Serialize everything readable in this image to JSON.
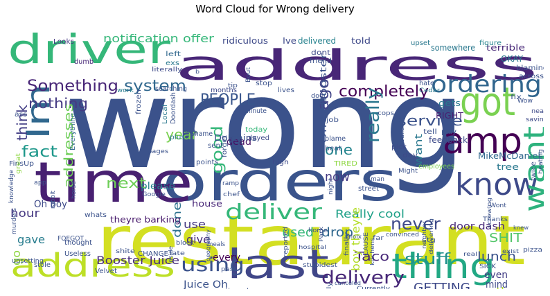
{
  "chart_data": {
    "type": "wordcloud",
    "title": "Word Cloud for Wrong delivery",
    "words": [
      {
        "text": "wrong",
        "color": "#3b528b"
      },
      {
        "text": "restaurant",
        "color": "#d3df22"
      },
      {
        "text": "address",
        "color": "#482677"
      },
      {
        "text": "orders",
        "color": "#3a548c"
      },
      {
        "text": "time",
        "color": "#482071"
      },
      {
        "text": "driver",
        "color": "#35b779"
      },
      {
        "text": "address",
        "color": "#bddf26"
      },
      {
        "text": "last",
        "color": "#404688"
      },
      {
        "text": "got",
        "color": "#7ad151"
      },
      {
        "text": "amp",
        "color": "#440154"
      },
      {
        "text": "know",
        "color": "#3e4a89"
      },
      {
        "text": "thing",
        "color": "#22a884"
      },
      {
        "text": "want",
        "color": "#2db27d"
      },
      {
        "text": "Im",
        "color": "#31688e"
      },
      {
        "text": "ordering",
        "color": "#31668e"
      },
      {
        "text": "deliver",
        "color": "#35b779"
      },
      {
        "text": "using",
        "color": "#3b528b"
      },
      {
        "text": "delivery",
        "color": "#482878"
      },
      {
        "text": "completely",
        "color": "#440154"
      },
      {
        "text": "Something",
        "color": "#482677"
      },
      {
        "text": "system",
        "color": "#31688e"
      },
      {
        "text": "PEOPLE",
        "color": "#39568c"
      },
      {
        "text": "never",
        "color": "#3e4a89"
      },
      {
        "text": "stuff",
        "color": "#21918c"
      },
      {
        "text": "fact",
        "color": "#1f988b"
      },
      {
        "text": "next",
        "color": "#6ece58"
      },
      {
        "text": "year",
        "color": "#7ad151"
      },
      {
        "text": "nothing",
        "color": "#443a83"
      },
      {
        "text": "service",
        "color": "#3b528b"
      },
      {
        "text": "really",
        "color": "#2a788e"
      },
      {
        "text": "think",
        "color": "#433e85"
      },
      {
        "text": "addresses",
        "color": "#6ece58"
      },
      {
        "text": "one",
        "color": "#25848e"
      },
      {
        "text": "good",
        "color": "#35b779"
      },
      {
        "text": "ago",
        "color": "#414487"
      },
      {
        "text": "now",
        "color": "#443a83"
      },
      {
        "text": "lunch",
        "color": "#3b528b"
      },
      {
        "text": "GETTING",
        "color": "#3e4989"
      },
      {
        "text": "Taco",
        "color": "#482878"
      },
      {
        "text": "SHIT",
        "color": "#52c569"
      },
      {
        "text": "another",
        "color": "#b5de2b"
      },
      {
        "text": "notification offer",
        "color": "#35b779"
      },
      {
        "text": "Booster Juice",
        "color": "#472d7b"
      },
      {
        "text": "Really cool",
        "color": "#1fa188"
      },
      {
        "text": "door dash",
        "color": "#482878"
      },
      {
        "text": "used",
        "color": "#35b779"
      },
      {
        "text": "drop",
        "color": "#31688e"
      },
      {
        "text": "gave",
        "color": "#287d8e"
      },
      {
        "text": "hour",
        "color": "#453781"
      },
      {
        "text": "go",
        "color": "#90d743"
      },
      {
        "text": "done",
        "color": "#2c718e"
      },
      {
        "text": "use",
        "color": "#453781"
      },
      {
        "text": "give",
        "color": "#472d7b"
      },
      {
        "text": "Oh boy",
        "color": "#3e4a89"
      },
      {
        "text": "please",
        "color": "#26828e"
      },
      {
        "text": "dead",
        "color": "#471365"
      },
      {
        "text": "want",
        "color": "#2a788e"
      },
      {
        "text": "gets",
        "color": "#2a788e"
      },
      {
        "text": "even",
        "color": "#433e85"
      },
      {
        "text": "mind",
        "color": "#3e4a89"
      },
      {
        "text": "every",
        "color": "#440154"
      },
      {
        "text": "Juice Oh",
        "color": "#3b528b"
      },
      {
        "text": "boy theyre",
        "color": "#b5de2b"
      },
      {
        "text": "theyre barking",
        "color": "#481a6c"
      },
      {
        "text": "MikeMcDaniel",
        "color": "#31688e"
      },
      {
        "text": "tree",
        "color": "#2a788e"
      },
      {
        "text": "RIGHT",
        "color": "#482071"
      },
      {
        "text": "feedback",
        "color": "#3e4a89"
      },
      {
        "text": "Dolphins",
        "color": "#3b528b"
      },
      {
        "text": "house",
        "color": "#482677"
      },
      {
        "text": "Ive",
        "color": "#3e4a89"
      },
      {
        "text": "delivered",
        "color": "#26828e"
      },
      {
        "text": "told",
        "color": "#3e4989"
      },
      {
        "text": "ridiculous",
        "color": "#3e4a89"
      },
      {
        "text": "somewhere",
        "color": "#2a788e"
      },
      {
        "text": "terrible",
        "color": "#482878"
      },
      {
        "text": "blaming",
        "color": "#3b528b"
      },
      {
        "text": "OKAY",
        "color": "#2a788e"
      },
      {
        "text": "across",
        "color": "#3b528b"
      },
      {
        "text": "Looks",
        "color": "#453781"
      },
      {
        "text": "dont",
        "color": "#3e4a89"
      },
      {
        "text": "friend",
        "color": "#3b528b"
      },
      {
        "text": "left",
        "color": "#31688e"
      },
      {
        "text": "exs",
        "color": "#2a788e"
      },
      {
        "text": "dumb",
        "color": "#482878"
      },
      {
        "text": "upset",
        "color": "#2a788e"
      },
      {
        "text": "figure",
        "color": "#25848e"
      },
      {
        "text": "months",
        "color": "#3e4a89"
      },
      {
        "text": "stop",
        "color": "#3b528b"
      },
      {
        "text": "lives",
        "color": "#3b528b"
      },
      {
        "text": "work",
        "color": "#287d8e"
      },
      {
        "text": "Local",
        "color": "#2a788e"
      },
      {
        "text": "Doordash",
        "color": "#3b528b"
      },
      {
        "text": "searching",
        "color": "#3b528b"
      },
      {
        "text": "literally",
        "color": "#3e4a89"
      },
      {
        "text": "hate",
        "color": "#3b528b"
      },
      {
        "text": "Cedar",
        "color": "#2a788e"
      },
      {
        "text": "fix",
        "color": "#3b528b"
      },
      {
        "text": "Wow",
        "color": "#3b528b"
      },
      {
        "text": "near",
        "color": "#3e4a89"
      },
      {
        "text": "saving",
        "color": "#3e4a89"
      },
      {
        "text": "minute",
        "color": "#3b528b"
      },
      {
        "text": "job",
        "color": "#3b528b"
      },
      {
        "text": "cops",
        "color": "#3b528b"
      },
      {
        "text": "tell",
        "color": "#3b528b"
      },
      {
        "text": "play",
        "color": "#3b528b"
      },
      {
        "text": "available",
        "color": "#3b528b"
      },
      {
        "text": "today",
        "color": "#35b779"
      },
      {
        "text": "played",
        "color": "#3e4a89"
      },
      {
        "text": "blame",
        "color": "#3b528b"
      },
      {
        "text": "beat",
        "color": "#3b528b"
      },
      {
        "text": "pick",
        "color": "#3e4a89"
      },
      {
        "text": "Everything",
        "color": "#31688e"
      },
      {
        "text": "Shame",
        "color": "#3b528b"
      },
      {
        "text": "plus",
        "color": "#2a788e"
      },
      {
        "text": "web",
        "color": "#3b528b"
      },
      {
        "text": "sent",
        "color": "#3b528b"
      },
      {
        "text": "forget",
        "color": "#3b528b"
      },
      {
        "text": "points",
        "color": "#3b528b"
      },
      {
        "text": "pages",
        "color": "#3b528b"
      },
      {
        "text": "Dear",
        "color": "#3b528b"
      },
      {
        "text": "high",
        "color": "#3e4a89"
      },
      {
        "text": "TIRED",
        "color": "#8fd744"
      },
      {
        "text": "day",
        "color": "#3e4a89"
      },
      {
        "text": "employees",
        "color": "#7ad151"
      },
      {
        "text": "Might",
        "color": "#3b528b"
      },
      {
        "text": "game",
        "color": "#3b528b"
      },
      {
        "text": "man",
        "color": "#3b528b"
      },
      {
        "text": "twice",
        "color": "#3b528b"
      },
      {
        "text": "heating",
        "color": "#3b528b"
      },
      {
        "text": "FinsUp",
        "color": "#3b528b"
      },
      {
        "text": "app",
        "color": "#3b528b"
      },
      {
        "text": "horse",
        "color": "#3b528b"
      },
      {
        "text": "rabbit",
        "color": "#3b528b"
      },
      {
        "text": "knowledge",
        "color": "#3b528b"
      },
      {
        "text": "murders",
        "color": "#3b528b"
      },
      {
        "text": "great",
        "color": "#8fd744"
      },
      {
        "text": "Google",
        "color": "#3b528b"
      },
      {
        "text": "ramp",
        "color": "#3b528b"
      },
      {
        "text": "chef",
        "color": "#3b528b"
      },
      {
        "text": "street",
        "color": "#3b528b"
      },
      {
        "text": "night",
        "color": "#3b528b"
      },
      {
        "text": "whats",
        "color": "#3b528b"
      },
      {
        "text": "FOEGOT",
        "color": "#3b528b"
      },
      {
        "text": "Useless",
        "color": "#3b528b"
      },
      {
        "text": "thought",
        "color": "#3b528b"
      },
      {
        "text": "CHANGE",
        "color": "#3b528b"
      },
      {
        "text": "upsetting",
        "color": "#3b528b"
      },
      {
        "text": "stole",
        "color": "#3b528b"
      },
      {
        "text": "Velvet",
        "color": "#3b528b"
      },
      {
        "text": "shite",
        "color": "#3b528b"
      },
      {
        "text": "block",
        "color": "#3b528b"
      },
      {
        "text": "meals",
        "color": "#3b528b"
      },
      {
        "text": "past",
        "color": "#3b528b"
      },
      {
        "text": "reported",
        "color": "#3b528b"
      },
      {
        "text": "stupidest",
        "color": "#3b528b"
      },
      {
        "text": "finally",
        "color": "#3b528b"
      },
      {
        "text": "CAUSE",
        "color": "#3b528b"
      },
      {
        "text": "kitchens",
        "color": "#3b528b"
      },
      {
        "text": "Currently",
        "color": "#3b528b"
      },
      {
        "text": "home",
        "color": "#3b528b"
      },
      {
        "text": "far",
        "color": "#3b528b"
      },
      {
        "text": "Park",
        "color": "#3b528b"
      },
      {
        "text": "hospital",
        "color": "#3b528b"
      },
      {
        "text": "convinced",
        "color": "#3b528b"
      },
      {
        "text": "gfolx",
        "color": "#3b528b"
      },
      {
        "text": "stg",
        "color": "#3b528b"
      },
      {
        "text": "neighbor",
        "color": "#3b528b"
      },
      {
        "text": "delivering",
        "color": "#3b528b"
      },
      {
        "text": "Wont",
        "color": "#3b528b"
      },
      {
        "text": "Thanks",
        "color": "#3b528b"
      },
      {
        "text": "knew",
        "color": "#3b528b"
      },
      {
        "text": "screwing",
        "color": "#3b528b"
      },
      {
        "text": "real",
        "color": "#3b528b"
      },
      {
        "text": "exist",
        "color": "#3b528b"
      },
      {
        "text": "pizza",
        "color": "#3b528b"
      },
      {
        "text": "SICK",
        "color": "#3b528b"
      },
      {
        "text": "tipped",
        "color": "#3b528b"
      },
      {
        "text": "breakfast",
        "color": "#3b528b"
      },
      {
        "text": "feels",
        "color": "#3b528b"
      },
      {
        "text": "Philly",
        "color": "#3b528b"
      },
      {
        "text": "canceled",
        "color": "#3b528b"
      },
      {
        "text": "wanna",
        "color": "#3b528b"
      },
      {
        "text": "correct",
        "color": "#3b528b"
      },
      {
        "text": "Idk",
        "color": "#3b528b"
      },
      {
        "text": "fast",
        "color": "#3b528b"
      },
      {
        "text": "facebooks",
        "color": "#3b528b"
      },
      {
        "text": "geography",
        "color": "#3b528b"
      },
      {
        "text": "late",
        "color": "#3b528b"
      },
      {
        "text": "inside",
        "color": "#3b528b"
      },
      {
        "text": "Bout",
        "color": "#3b528b"
      },
      {
        "text": "tip",
        "color": "#3b528b"
      },
      {
        "text": "Offer Booster",
        "color": "#3b528b"
      },
      {
        "text": "YO",
        "color": "#3b528b"
      },
      {
        "text": "ass",
        "color": "#3b528b"
      },
      {
        "text": "frozen",
        "color": "#3b528b"
      },
      {
        "text": "door",
        "color": "#3b528b"
      },
      {
        "text": "b",
        "color": "#3b528b"
      }
    ]
  }
}
